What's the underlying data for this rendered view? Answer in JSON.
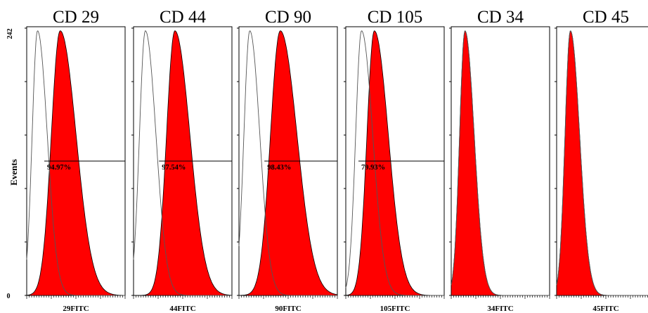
{
  "chart_data": [
    {
      "type": "area",
      "title": "CD 29",
      "xlabel": "29FITC",
      "ylabel": "Events",
      "ylim": [
        0,
        242
      ],
      "yticks": [
        "242",
        "0"
      ],
      "percent_label": "94.97%",
      "peak_control": 0.11,
      "peak_sample": 0.34,
      "spread_control": 0.055,
      "spread_sample": 0.09,
      "skew": 1.8
    },
    {
      "type": "area",
      "title": "CD 44",
      "xlabel": "44FITC",
      "ylim": [
        0,
        242
      ],
      "percent_label": "97.54%",
      "peak_control": 0.12,
      "peak_sample": 0.42,
      "spread_control": 0.06,
      "spread_sample": 0.085,
      "skew": 1.8
    },
    {
      "type": "area",
      "title": "CD 90",
      "xlabel": "90FITC",
      "ylim": [
        0,
        242
      ],
      "percent_label": "98.43%",
      "peak_control": 0.11,
      "peak_sample": 0.42,
      "spread_control": 0.06,
      "spread_sample": 0.1,
      "skew": 1.7
    },
    {
      "type": "area",
      "title": "CD 105",
      "xlabel": "105FITC",
      "ylim": [
        0,
        242
      ],
      "percent_label": "79.93%",
      "peak_control": 0.16,
      "peak_sample": 0.29,
      "spread_control": 0.06,
      "spread_sample": 0.075,
      "skew": 1.9
    },
    {
      "type": "area",
      "title": "CD 34",
      "xlabel": "34FITC",
      "ylim": [
        0,
        242
      ],
      "peak_control": 0.14,
      "peak_sample": 0.14,
      "spread_control": 0.055,
      "spread_sample": 0.055,
      "skew": 1.7
    },
    {
      "type": "area",
      "title": "CD 45",
      "xlabel": "45FITC",
      "ylim": [
        0,
        242
      ],
      "peak_control": 0.14,
      "peak_sample": 0.14,
      "spread_control": 0.055,
      "spread_sample": 0.055,
      "skew": 1.7
    }
  ],
  "colors": {
    "sample_fill": "#ff0000",
    "control_line": "#555555",
    "axis": "#000000"
  }
}
